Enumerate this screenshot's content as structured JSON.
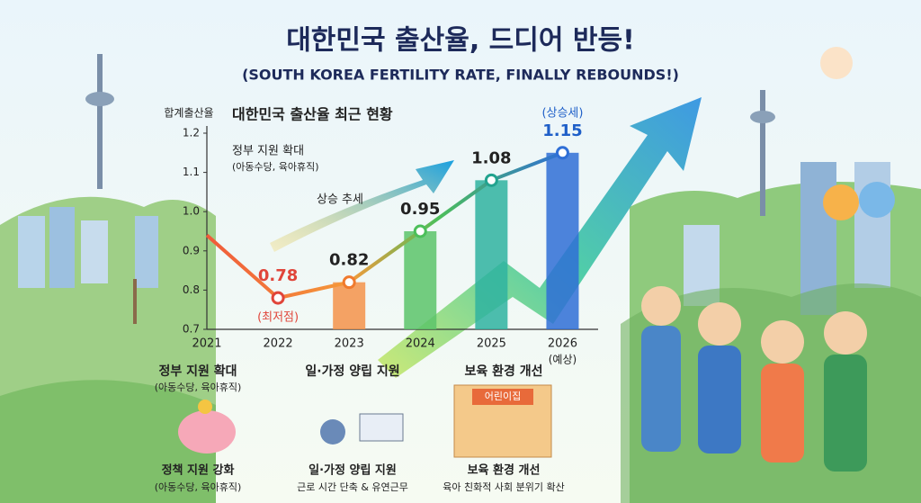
{
  "title": "대한민국 출산율, 드디어 반등!",
  "subtitle": "(SOUTH KOREA FERTILITY RATE, FINALLY REBOUNDS!)",
  "chart_data": {
    "type": "line",
    "title": "대한민국 출산율 최근 현황",
    "y_label": "합계출산율",
    "categories": [
      "2021",
      "2022",
      "2023",
      "2024",
      "2025",
      "2026"
    ],
    "x_note": "(예상)",
    "values": [
      0.94,
      0.78,
      0.82,
      0.95,
      1.08,
      1.15
    ],
    "value_labels": [
      null,
      "0.78",
      "0.82",
      "0.95",
      "1.08",
      "1.15"
    ],
    "label_colors": [
      null,
      "#e0453a",
      "#222222",
      "#222222",
      "#222222",
      "#1f5fc8"
    ],
    "point_colors": [
      null,
      "#e0453a",
      "#f07a2e",
      "#4cbf5a",
      "#23a38f",
      "#2f6fd6"
    ],
    "bar_colors": [
      null,
      null,
      "#f5934a",
      "#5cc46a",
      "#2fb3a0",
      "#2f6fd6"
    ],
    "low_label": "(최저점)",
    "high_label": "(상승세)",
    "note_title": "정부 지원 확대",
    "note_sub": "(아동수당, 육아휴직)",
    "trend_label": "상승 추세",
    "ylim": [
      0.7,
      1.2
    ],
    "yticks": [
      0.7,
      0.8,
      0.9,
      {
        "value": 1,
        "label": "1.0"
      },
      1.1,
      1.2
    ]
  },
  "panels": [
    {
      "heading": "정부 지원 확대",
      "heading_sub": "(아동수당, 육아휴직)",
      "caption": "정책 지원 강화",
      "caption_sub": "(아동수당, 육아휴직)"
    },
    {
      "heading": "일·가정 양립 지원",
      "caption": "일·가정 양립 지원",
      "caption_sub": "근로 시간 단축 & 유연근무"
    },
    {
      "heading": "보육 환경 개선",
      "sign": "어린이집",
      "caption": "보육 환경 개선",
      "caption_sub": "육아 친화적 사회 분위기 확산"
    }
  ]
}
